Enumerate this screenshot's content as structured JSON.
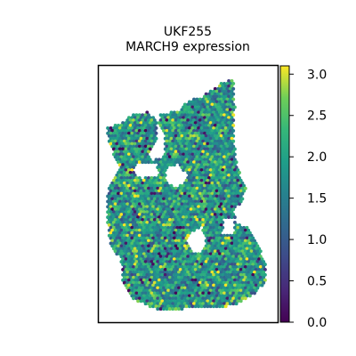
{
  "chart_data": {
    "type": "scatter",
    "title_line1": "UKF255",
    "title_line2": "MARCH9 expression",
    "xlabel": "",
    "ylabel": "",
    "grid": false,
    "legend": "none",
    "colorbar": {
      "colormap": "viridis",
      "vmin": 0.0,
      "vmax": 3.1,
      "ticks": [
        "0.0",
        "0.5",
        "1.0",
        "1.5",
        "2.0",
        "2.5",
        "3.0"
      ],
      "tick_values": [
        0.0,
        0.5,
        1.0,
        1.5,
        2.0,
        2.5,
        3.0
      ]
    },
    "points_note": "Several thousand spatial spots form the tissue shape; values range 0.0–3.1, most between 1.5 and 2.5."
  }
}
